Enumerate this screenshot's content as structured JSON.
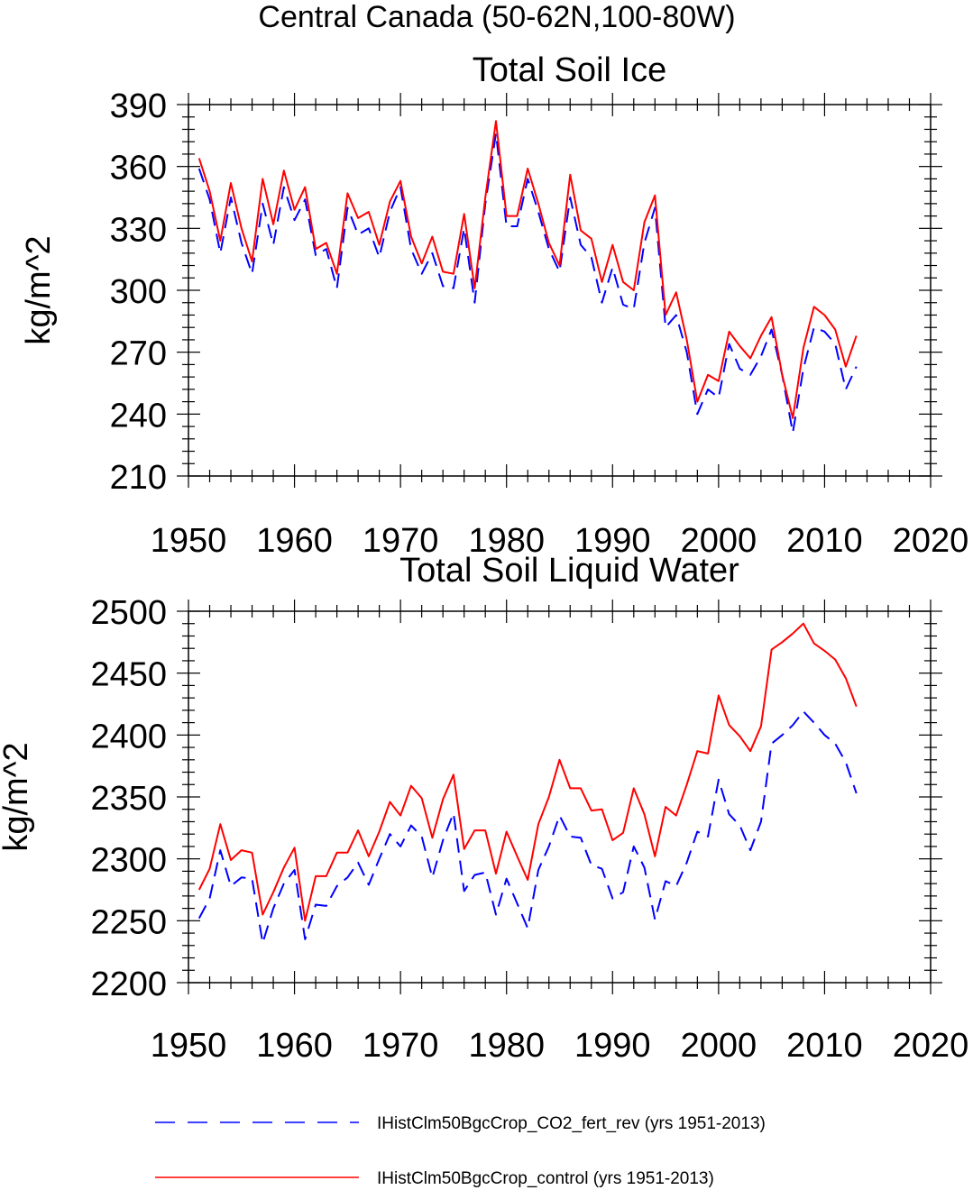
{
  "title": "Central Canada (50-62N,100-80W)",
  "legend": [
    {
      "label": "IHistClm50BgcCrop_CO2_fert_rev (yrs 1951-2013)",
      "color": "#0000ff",
      "dash": true
    },
    {
      "label": "IHistClm50BgcCrop_control (yrs 1951-2013)",
      "color": "#ff0000",
      "dash": false
    }
  ],
  "chart_data": [
    {
      "type": "line",
      "title": "Total Soil Ice",
      "ylabel": "kg/m^2",
      "xlim": [
        1950,
        2020
      ],
      "ylim": [
        210,
        390
      ],
      "xticks": [
        "1950",
        "1960",
        "1970",
        "1980",
        "1990",
        "2000",
        "2010",
        "2020"
      ],
      "yticks": [
        "210",
        "240",
        "270",
        "300",
        "330",
        "360",
        "390"
      ],
      "x": [
        1951,
        1952,
        1953,
        1954,
        1955,
        1956,
        1957,
        1958,
        1959,
        1960,
        1961,
        1962,
        1963,
        1964,
        1965,
        1966,
        1967,
        1968,
        1969,
        1970,
        1971,
        1972,
        1973,
        1974,
        1975,
        1976,
        1977,
        1978,
        1979,
        1980,
        1981,
        1982,
        1983,
        1984,
        1985,
        1986,
        1987,
        1988,
        1989,
        1990,
        1991,
        1992,
        1993,
        1994,
        1995,
        1996,
        1997,
        1998,
        1999,
        2000,
        2001,
        2002,
        2003,
        2004,
        2005,
        2006,
        2007,
        2008,
        2009,
        2010,
        2011,
        2012,
        2013
      ],
      "series": [
        {
          "color": "#0000ff",
          "values": [
            359,
            344,
            318,
            345,
            323,
            308,
            342,
            322,
            350,
            334,
            344,
            317,
            320,
            301,
            340,
            327,
            330,
            316,
            338,
            350,
            320,
            308,
            318,
            302,
            301,
            330,
            294,
            342,
            376,
            331,
            331,
            354,
            338,
            320,
            309,
            345,
            322,
            316,
            294,
            311,
            293,
            291,
            323,
            340,
            282,
            288,
            270,
            240,
            252,
            248,
            274,
            262,
            259,
            268,
            281,
            259,
            231,
            262,
            282,
            280,
            274,
            252,
            263
          ]
        },
        {
          "color": "#ff0000",
          "values": [
            364,
            348,
            324,
            352,
            330,
            314,
            354,
            332,
            358,
            339,
            350,
            320,
            323,
            308,
            347,
            335,
            338,
            322,
            343,
            353,
            326,
            313,
            326,
            309,
            308,
            337,
            301,
            345,
            382,
            336,
            336,
            359,
            342,
            323,
            312,
            356,
            329,
            325,
            304,
            322,
            304,
            300,
            333,
            346,
            288,
            299,
            276,
            246,
            259,
            256,
            280,
            273,
            267,
            278,
            287,
            259,
            238,
            272,
            292,
            288,
            281,
            263,
            278
          ]
        }
      ]
    },
    {
      "type": "line",
      "title": "Total Soil Liquid Water",
      "ylabel": "kg/m^2",
      "xlim": [
        1950,
        2020
      ],
      "ylim": [
        2200,
        2500
      ],
      "xticks": [
        "1950",
        "1960",
        "1970",
        "1980",
        "1990",
        "2000",
        "2010",
        "2020"
      ],
      "yticks": [
        "2200",
        "2250",
        "2300",
        "2350",
        "2400",
        "2450",
        "2500"
      ],
      "x": [
        1951,
        1952,
        1953,
        1954,
        1955,
        1956,
        1957,
        1958,
        1959,
        1960,
        1961,
        1962,
        1963,
        1964,
        1965,
        1966,
        1967,
        1968,
        1969,
        1970,
        1971,
        1972,
        1973,
        1974,
        1975,
        1976,
        1977,
        1978,
        1979,
        1980,
        1981,
        1982,
        1983,
        1984,
        1985,
        1986,
        1987,
        1988,
        1989,
        1990,
        1991,
        1992,
        1993,
        1994,
        1995,
        1996,
        1997,
        1998,
        1999,
        2000,
        2001,
        2002,
        2003,
        2004,
        2005,
        2006,
        2007,
        2008,
        2009,
        2010,
        2011,
        2012,
        2013
      ],
      "series": [
        {
          "color": "#0000ff",
          "values": [
            2252,
            2268,
            2307,
            2278,
            2285,
            2284,
            2232,
            2260,
            2280,
            2291,
            2235,
            2263,
            2262,
            2278,
            2285,
            2297,
            2279,
            2300,
            2320,
            2310,
            2327,
            2318,
            2285,
            2315,
            2337,
            2274,
            2287,
            2289,
            2255,
            2284,
            2264,
            2244,
            2291,
            2310,
            2335,
            2318,
            2317,
            2295,
            2292,
            2268,
            2273,
            2310,
            2293,
            2251,
            2282,
            2278,
            2297,
            2322,
            2318,
            2364,
            2336,
            2327,
            2307,
            2330,
            2393,
            2400,
            2408,
            2419,
            2410,
            2400,
            2393,
            2378,
            2353
          ]
        },
        {
          "color": "#ff0000",
          "values": [
            2275,
            2292,
            2328,
            2299,
            2307,
            2305,
            2255,
            2273,
            2293,
            2309,
            2250,
            2286,
            2286,
            2305,
            2305,
            2323,
            2302,
            2322,
            2346,
            2335,
            2359,
            2349,
            2317,
            2348,
            2368,
            2308,
            2323,
            2323,
            2288,
            2322,
            2302,
            2283,
            2328,
            2350,
            2380,
            2357,
            2357,
            2339,
            2340,
            2315,
            2321,
            2357,
            2336,
            2302,
            2342,
            2335,
            2360,
            2387,
            2385,
            2432,
            2408,
            2399,
            2387,
            2407,
            2469,
            2475,
            2482,
            2490,
            2474,
            2468,
            2461,
            2446,
            2423
          ]
        }
      ]
    }
  ]
}
